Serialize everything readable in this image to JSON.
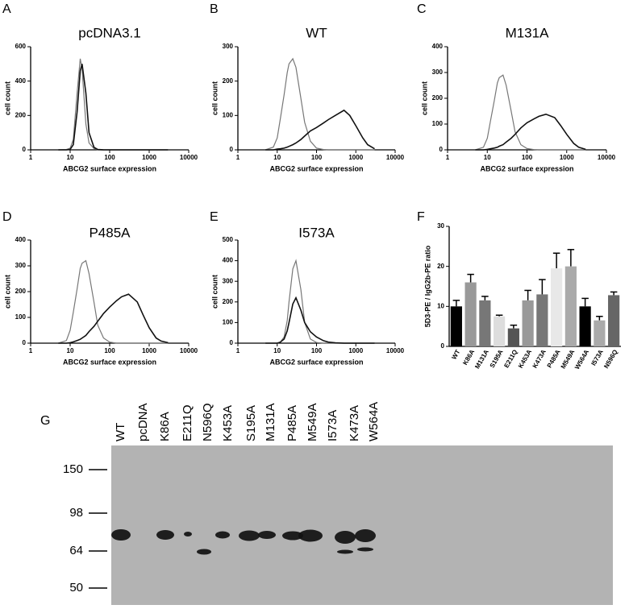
{
  "chart_data": [
    {
      "type": "line",
      "panel": "A",
      "title": "pcDNA3.1",
      "xlabel": "ABCG2 surface expression",
      "ylabel": "cell count",
      "xscale": "log",
      "xlim": [
        1,
        10000
      ],
      "xticks": [
        1,
        10,
        100,
        1000,
        10000
      ],
      "ylim": [
        0,
        600
      ],
      "yticks": [
        0,
        200,
        400,
        600
      ],
      "x": [
        5,
        8,
        10,
        12,
        15,
        18,
        20,
        25,
        30,
        40,
        50,
        70,
        100,
        150,
        200,
        300,
        500,
        700,
        1000,
        1500,
        2000,
        3000
      ],
      "series": [
        {
          "color": "#777777",
          "values": [
            0,
            2,
            10,
            60,
            330,
            530,
            470,
            150,
            40,
            8,
            0,
            0,
            0,
            0,
            0,
            0,
            0,
            0,
            0,
            0,
            0,
            0
          ]
        },
        {
          "color": "#111111",
          "values": [
            0,
            0,
            3,
            30,
            220,
            460,
            500,
            330,
            100,
            15,
            2,
            0,
            0,
            0,
            0,
            0,
            0,
            0,
            0,
            0,
            0,
            0
          ]
        }
      ]
    },
    {
      "type": "line",
      "panel": "B",
      "title": "WT",
      "xlabel": "ABCG2 surface expression",
      "ylabel": "cell count",
      "xscale": "log",
      "xlim": [
        1,
        10000
      ],
      "xticks": [
        1,
        10,
        100,
        1000,
        10000
      ],
      "ylim": [
        0,
        300
      ],
      "yticks": [
        0,
        100,
        200,
        300
      ],
      "x": [
        5,
        8,
        10,
        12,
        15,
        18,
        20,
        25,
        30,
        40,
        50,
        70,
        100,
        150,
        200,
        300,
        500,
        700,
        1000,
        1500,
        2000,
        3000
      ],
      "series": [
        {
          "color": "#777777",
          "values": [
            0,
            8,
            35,
            90,
            160,
            225,
            250,
            265,
            240,
            150,
            80,
            25,
            5,
            1,
            0,
            0,
            0,
            0,
            0,
            0,
            0,
            0
          ]
        },
        {
          "color": "#111111",
          "values": [
            0,
            0,
            2,
            3,
            5,
            8,
            10,
            15,
            20,
            30,
            40,
            55,
            65,
            78,
            88,
            100,
            115,
            100,
            70,
            35,
            15,
            3
          ]
        }
      ]
    },
    {
      "type": "line",
      "panel": "C",
      "title": "M131A",
      "xlabel": "ABCG2 surface expression",
      "ylabel": "cell count",
      "xscale": "log",
      "xlim": [
        1,
        10000
      ],
      "xticks": [
        1,
        10,
        100,
        1000,
        10000
      ],
      "ylim": [
        0,
        400
      ],
      "yticks": [
        0,
        100,
        200,
        300,
        400
      ],
      "x": [
        5,
        8,
        10,
        12,
        15,
        18,
        20,
        25,
        30,
        40,
        50,
        70,
        100,
        150,
        200,
        300,
        500,
        700,
        1000,
        1500,
        2000,
        3000
      ],
      "series": [
        {
          "color": "#777777",
          "values": [
            0,
            10,
            45,
            110,
            190,
            260,
            280,
            290,
            250,
            150,
            70,
            20,
            5,
            1,
            0,
            0,
            0,
            0,
            0,
            0,
            0,
            0
          ]
        },
        {
          "color": "#111111",
          "values": [
            0,
            0,
            2,
            4,
            7,
            10,
            14,
            20,
            30,
            45,
            60,
            85,
            105,
            120,
            130,
            138,
            125,
            95,
            60,
            25,
            10,
            2
          ]
        }
      ]
    },
    {
      "type": "line",
      "panel": "D",
      "title": "P485A",
      "xlabel": "ABCG2 surface expression",
      "ylabel": "cell count",
      "xscale": "log",
      "xlim": [
        1,
        10000
      ],
      "xticks": [
        1,
        10,
        100,
        1000,
        10000
      ],
      "ylim": [
        0,
        400
      ],
      "yticks": [
        0,
        100,
        200,
        300,
        400
      ],
      "x": [
        5,
        8,
        10,
        12,
        15,
        18,
        20,
        25,
        30,
        40,
        50,
        70,
        100,
        150,
        200,
        300,
        500,
        700,
        1000,
        1500,
        2000,
        3000
      ],
      "series": [
        {
          "color": "#777777",
          "values": [
            0,
            10,
            50,
            120,
            210,
            290,
            310,
            320,
            270,
            160,
            70,
            20,
            4,
            0,
            0,
            0,
            0,
            0,
            0,
            0,
            0,
            0
          ]
        },
        {
          "color": "#111111",
          "values": [
            0,
            0,
            2,
            5,
            10,
            15,
            20,
            30,
            45,
            65,
            85,
            115,
            140,
            165,
            180,
            190,
            160,
            110,
            60,
            20,
            8,
            2
          ]
        }
      ]
    },
    {
      "type": "line",
      "panel": "E",
      "title": "I573A",
      "xlabel": "ABCG2 surface expression",
      "ylabel": "cell count",
      "xscale": "log",
      "xlim": [
        1,
        10000
      ],
      "xticks": [
        1,
        10,
        100,
        1000,
        10000
      ],
      "ylim": [
        0,
        500
      ],
      "yticks": [
        0,
        100,
        200,
        300,
        400,
        500
      ],
      "x": [
        5,
        8,
        10,
        12,
        15,
        18,
        20,
        25,
        30,
        40,
        50,
        70,
        100,
        150,
        200,
        300,
        500,
        700,
        1000,
        1500,
        2000,
        3000
      ],
      "series": [
        {
          "color": "#777777",
          "values": [
            0,
            0,
            0,
            5,
            30,
            110,
            200,
            360,
            400,
            260,
            100,
            20,
            3,
            0,
            0,
            0,
            0,
            0,
            0,
            0,
            0,
            0
          ]
        },
        {
          "color": "#111111",
          "values": [
            0,
            0,
            0,
            5,
            20,
            60,
            100,
            190,
            220,
            160,
            100,
            55,
            30,
            12,
            5,
            2,
            0,
            0,
            0,
            0,
            0,
            0
          ]
        }
      ]
    },
    {
      "type": "bar",
      "panel": "F",
      "ylabel": "5D3-PE / IgG2b-PE ratio",
      "categories": [
        "WT",
        "K86A",
        "M131A",
        "S195A",
        "E211Q",
        "K453A",
        "K473A",
        "P485A",
        "M549A",
        "W564A",
        "I573A",
        "N596Q"
      ],
      "values": [
        10,
        16,
        11.5,
        7.5,
        4.5,
        11.5,
        13,
        19.5,
        20,
        10,
        6.5,
        12.8
      ],
      "errors": [
        1.5,
        2,
        1,
        0.3,
        0.8,
        2.5,
        3.7,
        3.8,
        4.2,
        2,
        1,
        0.8
      ],
      "colors": [
        "#000000",
        "#999999",
        "#777777",
        "#dddddd",
        "#555555",
        "#999999",
        "#777777",
        "#e8e8e8",
        "#aaaaaa",
        "#000000",
        "#aaaaaa",
        "#666666"
      ],
      "ylim": [
        0,
        30
      ],
      "yticks": [
        0,
        10,
        20,
        30
      ]
    }
  ],
  "blot": {
    "panel": "G",
    "lanes": [
      "WT",
      "pcDNA",
      "K86A",
      "E211Q",
      "N596Q",
      "K453A",
      "S195A",
      "M131A",
      "P485A",
      "M549A",
      "I573A",
      "K473A",
      "W564A"
    ],
    "markers": [
      150,
      98,
      64,
      50
    ]
  }
}
